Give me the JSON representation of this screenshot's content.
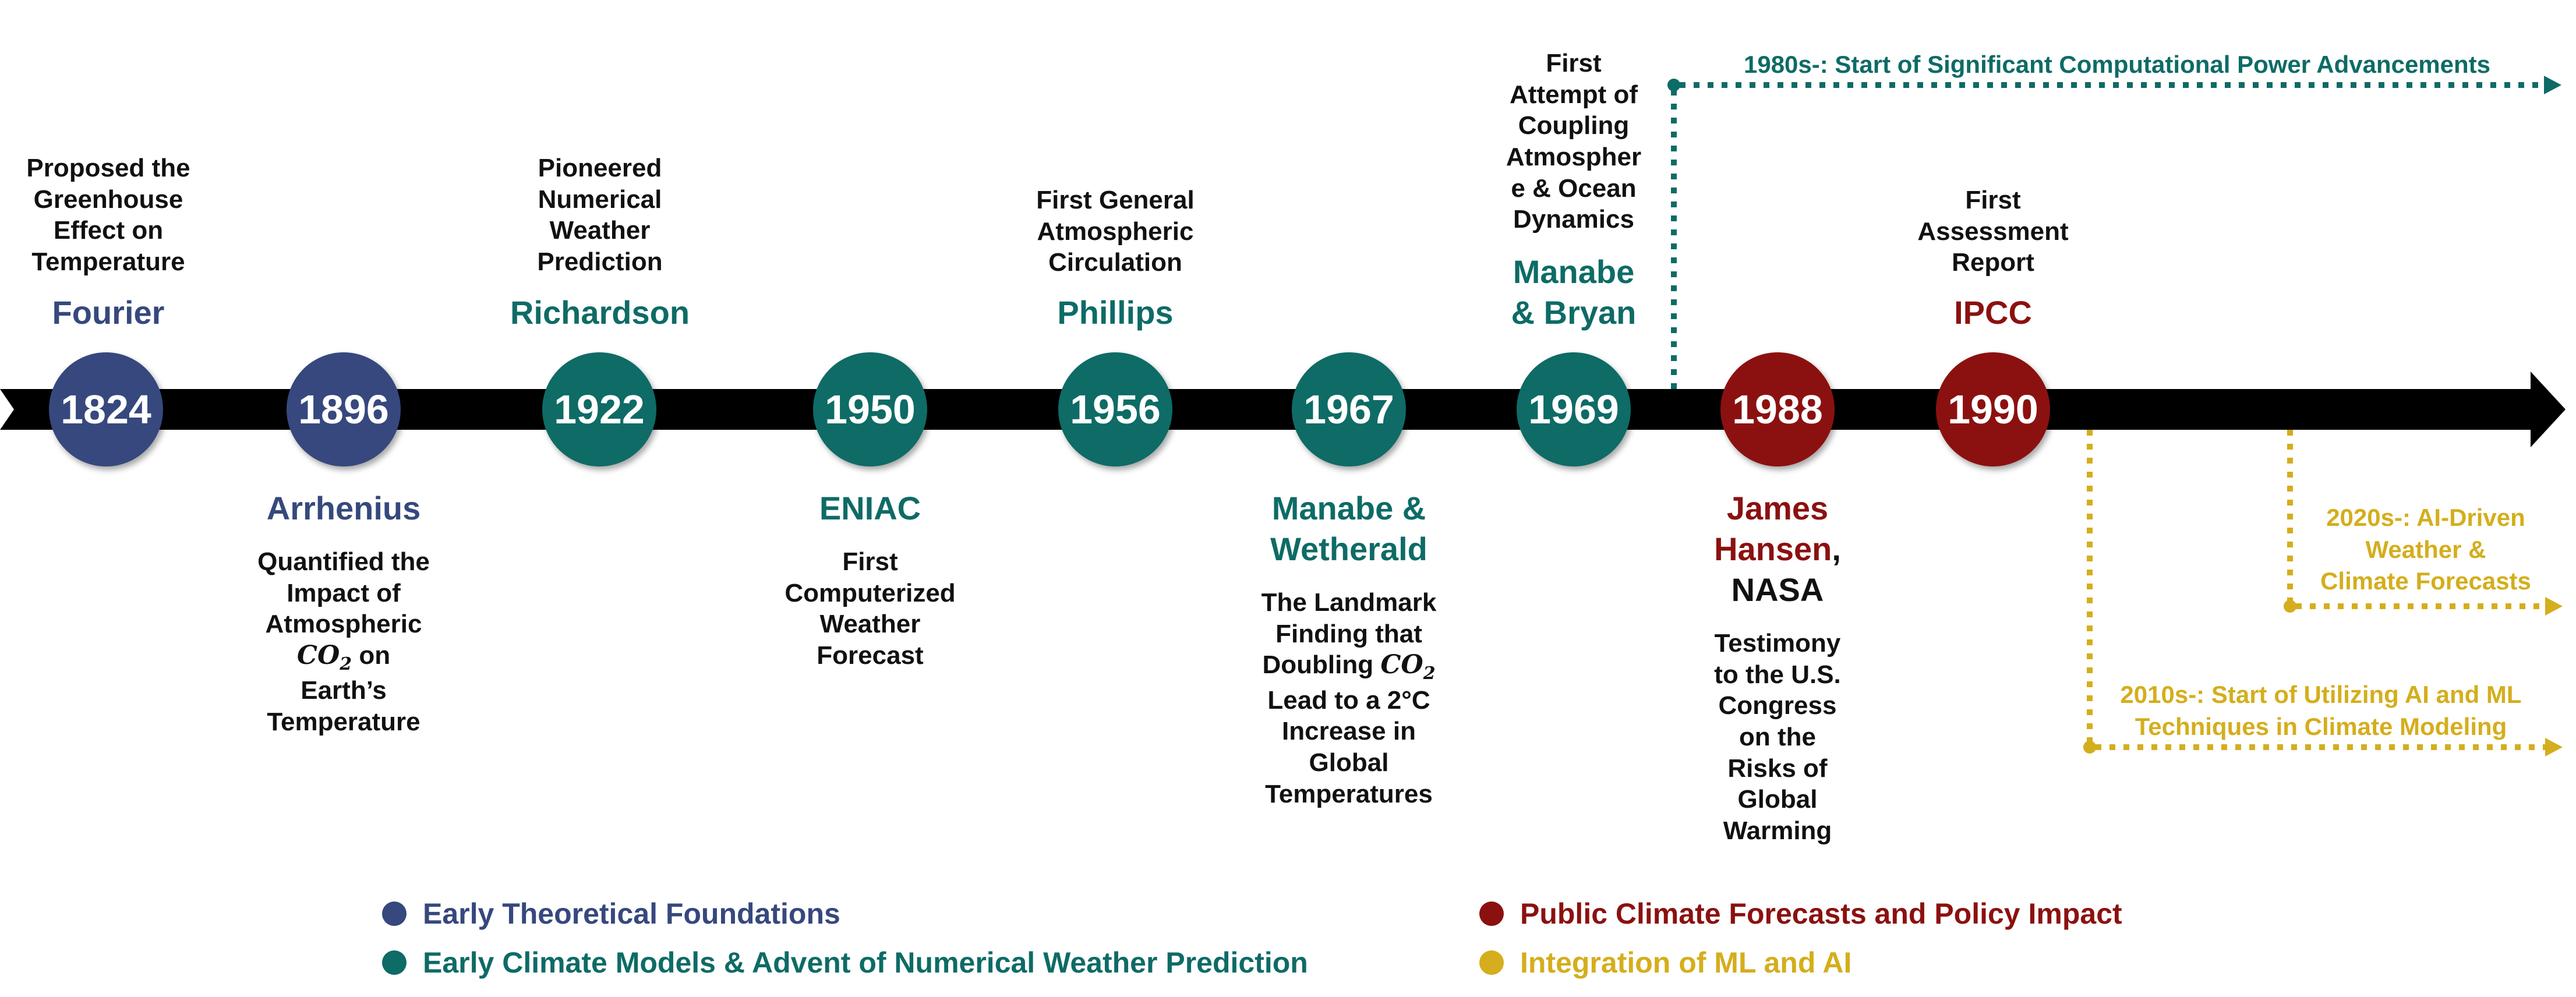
{
  "colors": {
    "theory": "#36487d",
    "models": "#0e6b66",
    "policy": "#8b1110",
    "ml": "#d4ae1c",
    "axis": "#000000"
  },
  "timeline": {
    "y1824": "1824",
    "y1896": "1896",
    "y1922": "1922",
    "y1950": "1950",
    "y1956": "1956",
    "y1967": "1967",
    "y1969": "1969",
    "y1988": "1988",
    "y1990": "1990"
  },
  "events": {
    "fourier": {
      "name": "Fourier",
      "desc": [
        "Proposed the",
        "Greenhouse",
        "Effect on",
        "Temperature"
      ]
    },
    "arrhenius": {
      "name": "Arrhenius",
      "desc": [
        "Quantified the",
        "Impact of",
        "Atmospheric",
        "CO",
        "2",
        " on",
        "Earth’s",
        "Temperature"
      ]
    },
    "richardson": {
      "name": "Richardson",
      "desc": [
        "Pioneered",
        "Numerical",
        "Weather",
        "Prediction"
      ]
    },
    "eniac": {
      "name": "ENIAC",
      "desc": [
        "First",
        "Computerized",
        "Weather",
        "Forecast"
      ]
    },
    "phillips": {
      "name": "Phillips",
      "desc": [
        "First General",
        "Atmospheric",
        "Circulation"
      ]
    },
    "wetherald": {
      "name": [
        "Manabe &",
        "Wetherald"
      ],
      "desc": [
        "The Landmark",
        "Finding that",
        "Doubling ",
        "CO",
        "2",
        "Lead to a 2°C",
        "Increase in",
        "Global",
        "Temperatures"
      ]
    },
    "bryan": {
      "name": [
        "Manabe",
        "& Bryan"
      ],
      "desc": [
        "First",
        "Attempt of",
        "Coupling",
        "Atmospher",
        "e & Ocean",
        "Dynamics"
      ]
    },
    "hansen": {
      "name": [
        "James",
        "Hansen",
        ",",
        "NASA"
      ],
      "desc": [
        "Testimony",
        "to the U.S.",
        "Congress",
        "on the",
        "Risks of",
        "Global",
        "Warming"
      ]
    },
    "ipcc": {
      "name": "IPCC",
      "desc": [
        "First",
        "Assessment",
        "Report"
      ]
    }
  },
  "eras": {
    "computing": "1980s-: Start of Significant Computational Power Advancements",
    "ml2010": [
      "2010s-: Start of Utilizing AI and ML",
      "Techniques in Climate Modeling"
    ],
    "ai2020": [
      "2020s-: AI-Driven",
      "Weather &",
      "Climate Forecasts"
    ]
  },
  "legend": {
    "theory": "Early Theoretical Foundations",
    "models": "Early Climate Models & Advent of Numerical Weather Prediction",
    "policy": "Public Climate Forecasts and Policy Impact",
    "ml": "Integration of ML and AI"
  }
}
